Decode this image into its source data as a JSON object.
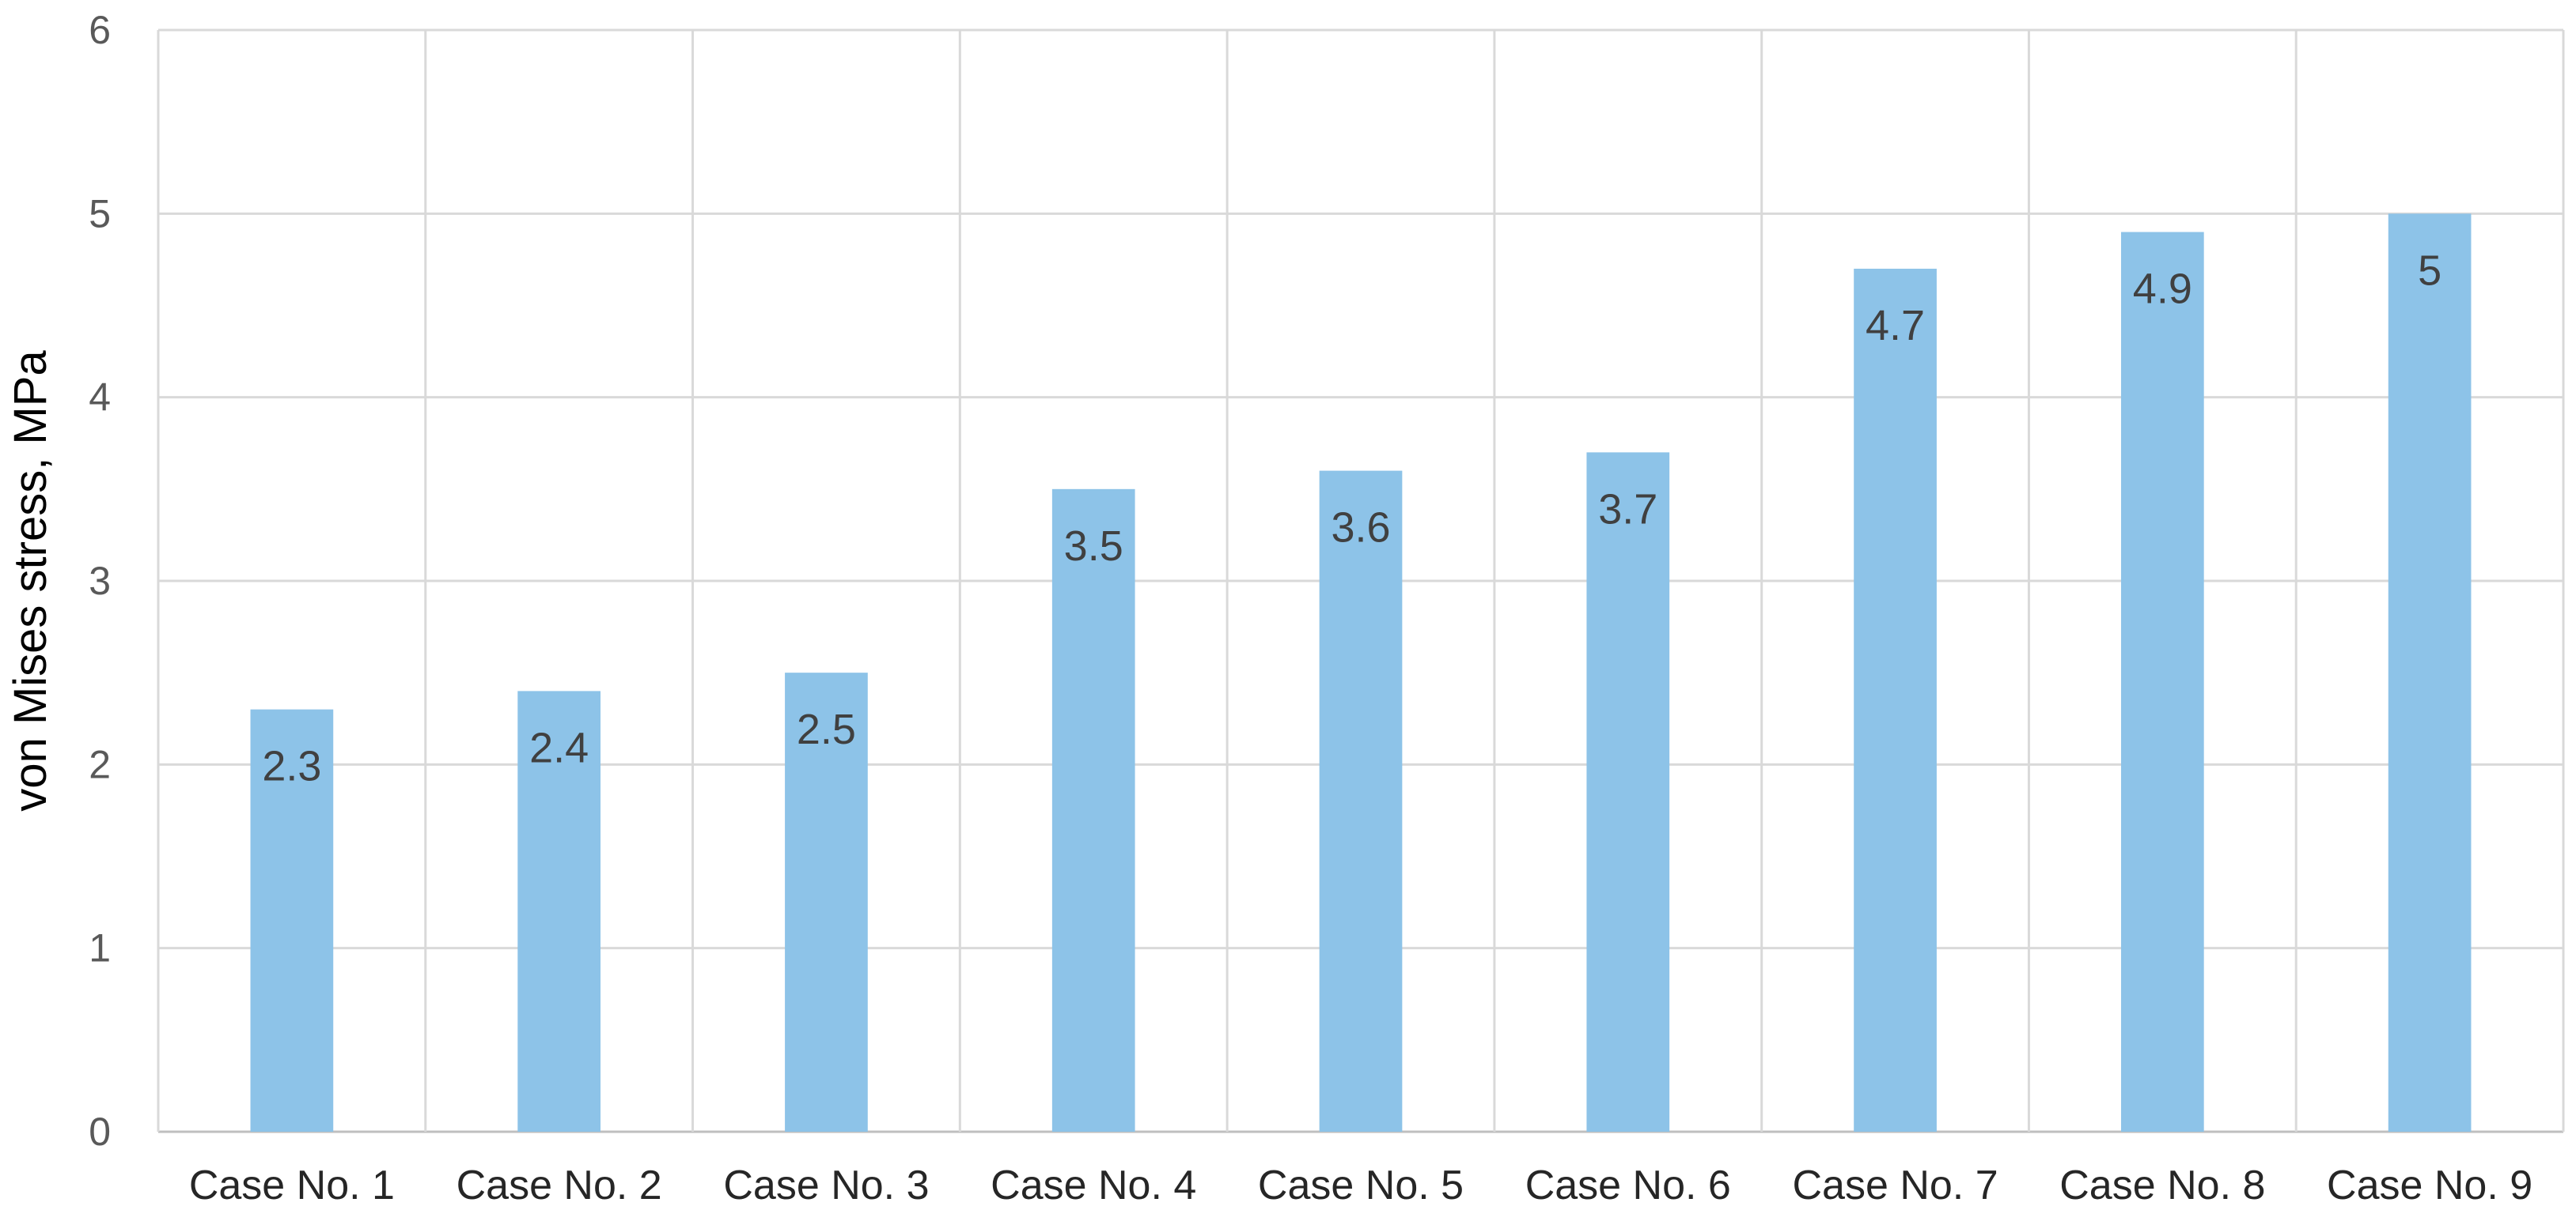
{
  "chart_data": {
    "type": "bar",
    "title": "",
    "xlabel": "",
    "ylabel": "von Mises stress, MPa",
    "categories": [
      "Case No. 1",
      "Case No. 2",
      "Case No. 3",
      "Case No. 4",
      "Case No. 5",
      "Case No. 6",
      "Case No. 7",
      "Case No. 8",
      "Case No. 9"
    ],
    "values": [
      2.3,
      2.4,
      2.5,
      3.5,
      3.6,
      3.7,
      4.7,
      4.9,
      5
    ],
    "data_labels": [
      "2.3",
      "2.4",
      "2.5",
      "3.5",
      "3.6",
      "3.7",
      "4.7",
      "4.9",
      "5"
    ],
    "ylim": [
      0,
      6
    ],
    "yticks": [
      "0",
      "1",
      "2",
      "3",
      "4",
      "5",
      "6"
    ],
    "grid": true,
    "bar_color": "#8DC3E8",
    "grid_color": "#D9D9D9",
    "legend": "none"
  }
}
